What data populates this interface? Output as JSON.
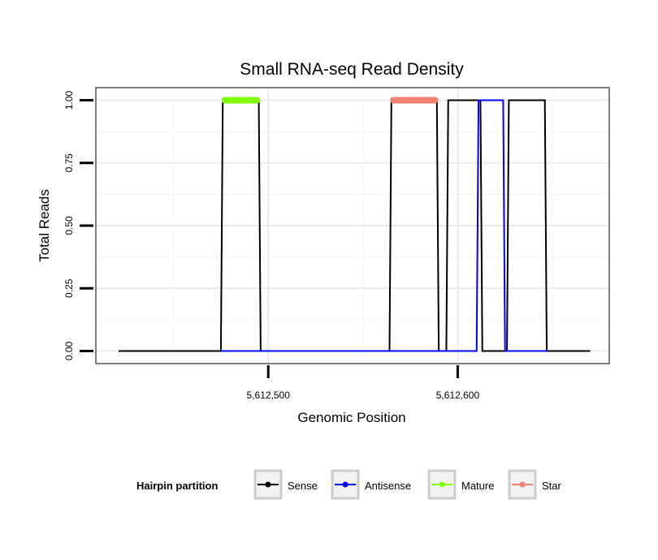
{
  "chart_data": {
    "type": "line",
    "title": "Small RNA-seq Read Density",
    "xlabel": "Genomic Position",
    "ylabel": "Total Reads",
    "xlim": [
      5612409,
      5612680
    ],
    "ylim": [
      -0.05,
      1.05
    ],
    "x_ticks": [
      5612500,
      5612600
    ],
    "x_tick_labels": [
      "5,612,500",
      "5,612,600"
    ],
    "y_ticks": [
      0,
      0.25,
      0.5,
      0.75,
      1
    ],
    "y_tick_labels": [
      "0.00",
      "0.25",
      "0.50",
      "0.75",
      "1.00"
    ],
    "grid": true,
    "legend": {
      "title": "Hairpin partition",
      "position": "bottom",
      "entries": [
        {
          "name": "Sense",
          "color": "#000000"
        },
        {
          "name": "Antisense",
          "color": "#0000ff"
        },
        {
          "name": "Mature",
          "color": "#7fff00"
        },
        {
          "name": "Star",
          "color": "#f08070"
        }
      ]
    },
    "series": [
      {
        "name": "Sense",
        "color": "#000000",
        "points": [
          [
            5612421,
            0
          ],
          [
            5612475,
            0
          ],
          [
            5612476,
            1
          ],
          [
            5612495,
            1
          ],
          [
            5612496,
            0
          ],
          [
            5612564,
            0
          ],
          [
            5612565,
            1
          ],
          [
            5612589,
            1
          ],
          [
            5612590,
            0
          ],
          [
            5612594,
            0
          ],
          [
            5612595,
            1
          ],
          [
            5612612,
            1
          ],
          [
            5612613,
            0
          ],
          [
            5612626,
            0
          ],
          [
            5612627,
            1
          ],
          [
            5612646,
            1
          ],
          [
            5612647,
            0
          ],
          [
            5612670,
            0
          ]
        ]
      },
      {
        "name": "Antisense",
        "color": "#0000ff",
        "points": [
          [
            5612475,
            0
          ],
          [
            5612496,
            0
          ],
          [
            5612564,
            0
          ],
          [
            5612610,
            0
          ],
          [
            5612611,
            1
          ],
          [
            5612624,
            1
          ],
          [
            5612625,
            0
          ],
          [
            5612647,
            0
          ]
        ]
      },
      {
        "name": "Mature",
        "color": "#7fff00",
        "segment": [
          5612477,
          5612494
        ],
        "value": 1
      },
      {
        "name": "Star",
        "color": "#f08070",
        "segment": [
          5612566,
          5612588
        ],
        "value": 1
      }
    ]
  }
}
